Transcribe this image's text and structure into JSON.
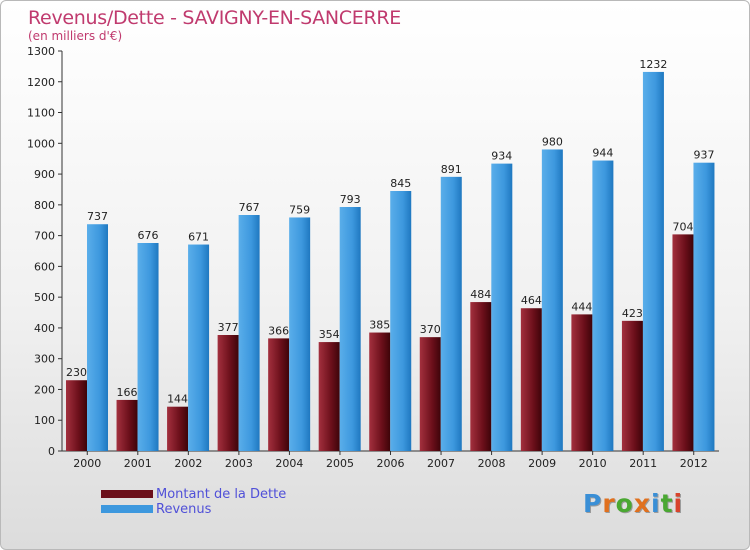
{
  "title": "Revenus/Dette - SAVIGNY-EN-SANCERRE",
  "subtitle": "(en milliers d'€)",
  "logo_text": "Proxiti",
  "colors": {
    "dette": "#6b0f1a",
    "revenus": "#3d98de",
    "title": "#c03a6e",
    "legend_text": "#5050d8"
  },
  "chart_data": {
    "type": "bar",
    "categories": [
      "2000",
      "2001",
      "2002",
      "2003",
      "2004",
      "2005",
      "2006",
      "2007",
      "2008",
      "2009",
      "2010",
      "2011",
      "2012"
    ],
    "series": [
      {
        "name": "Montant de la Dette",
        "values": [
          230,
          166,
          144,
          377,
          366,
          354,
          385,
          370,
          484,
          464,
          444,
          423,
          704
        ]
      },
      {
        "name": "Revenus",
        "values": [
          737,
          676,
          671,
          767,
          759,
          793,
          845,
          891,
          934,
          980,
          944,
          1232,
          937
        ]
      }
    ],
    "ylim": [
      0,
      1300
    ],
    "yticks": [
      0,
      100,
      200,
      300,
      400,
      500,
      600,
      700,
      800,
      900,
      1000,
      1100,
      1200,
      1300
    ],
    "grid": false,
    "legend_position": "bottom-left"
  }
}
